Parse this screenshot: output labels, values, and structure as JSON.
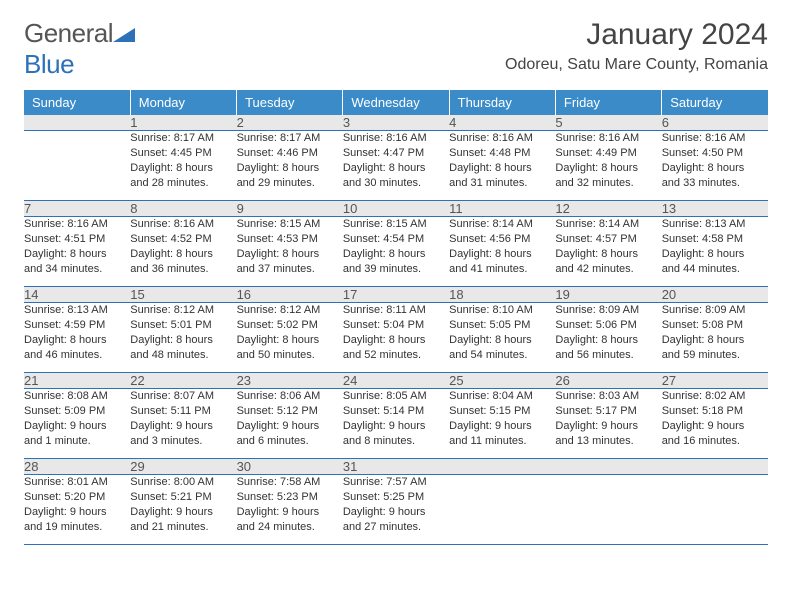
{
  "logo": {
    "text_a": "General",
    "text_b": "Blue",
    "shape_color": "#2d72b8"
  },
  "title": "January 2024",
  "location": "Odoreu, Satu Mare County, Romania",
  "colors": {
    "header_bg": "#3b8bc9",
    "header_fg": "#ffffff",
    "daynum_bg": "#e8e8e8",
    "border": "#2d72b8",
    "text": "#333333"
  },
  "weekdays": [
    "Sunday",
    "Monday",
    "Tuesday",
    "Wednesday",
    "Thursday",
    "Friday",
    "Saturday"
  ],
  "weeks": [
    {
      "nums": [
        "",
        "1",
        "2",
        "3",
        "4",
        "5",
        "6"
      ],
      "cells": [
        {
          "sunrise": "",
          "sunset": "",
          "daylight1": "",
          "daylight2": ""
        },
        {
          "sunrise": "Sunrise: 8:17 AM",
          "sunset": "Sunset: 4:45 PM",
          "daylight1": "Daylight: 8 hours",
          "daylight2": "and 28 minutes."
        },
        {
          "sunrise": "Sunrise: 8:17 AM",
          "sunset": "Sunset: 4:46 PM",
          "daylight1": "Daylight: 8 hours",
          "daylight2": "and 29 minutes."
        },
        {
          "sunrise": "Sunrise: 8:16 AM",
          "sunset": "Sunset: 4:47 PM",
          "daylight1": "Daylight: 8 hours",
          "daylight2": "and 30 minutes."
        },
        {
          "sunrise": "Sunrise: 8:16 AM",
          "sunset": "Sunset: 4:48 PM",
          "daylight1": "Daylight: 8 hours",
          "daylight2": "and 31 minutes."
        },
        {
          "sunrise": "Sunrise: 8:16 AM",
          "sunset": "Sunset: 4:49 PM",
          "daylight1": "Daylight: 8 hours",
          "daylight2": "and 32 minutes."
        },
        {
          "sunrise": "Sunrise: 8:16 AM",
          "sunset": "Sunset: 4:50 PM",
          "daylight1": "Daylight: 8 hours",
          "daylight2": "and 33 minutes."
        }
      ]
    },
    {
      "nums": [
        "7",
        "8",
        "9",
        "10",
        "11",
        "12",
        "13"
      ],
      "cells": [
        {
          "sunrise": "Sunrise: 8:16 AM",
          "sunset": "Sunset: 4:51 PM",
          "daylight1": "Daylight: 8 hours",
          "daylight2": "and 34 minutes."
        },
        {
          "sunrise": "Sunrise: 8:16 AM",
          "sunset": "Sunset: 4:52 PM",
          "daylight1": "Daylight: 8 hours",
          "daylight2": "and 36 minutes."
        },
        {
          "sunrise": "Sunrise: 8:15 AM",
          "sunset": "Sunset: 4:53 PM",
          "daylight1": "Daylight: 8 hours",
          "daylight2": "and 37 minutes."
        },
        {
          "sunrise": "Sunrise: 8:15 AM",
          "sunset": "Sunset: 4:54 PM",
          "daylight1": "Daylight: 8 hours",
          "daylight2": "and 39 minutes."
        },
        {
          "sunrise": "Sunrise: 8:14 AM",
          "sunset": "Sunset: 4:56 PM",
          "daylight1": "Daylight: 8 hours",
          "daylight2": "and 41 minutes."
        },
        {
          "sunrise": "Sunrise: 8:14 AM",
          "sunset": "Sunset: 4:57 PM",
          "daylight1": "Daylight: 8 hours",
          "daylight2": "and 42 minutes."
        },
        {
          "sunrise": "Sunrise: 8:13 AM",
          "sunset": "Sunset: 4:58 PM",
          "daylight1": "Daylight: 8 hours",
          "daylight2": "and 44 minutes."
        }
      ]
    },
    {
      "nums": [
        "14",
        "15",
        "16",
        "17",
        "18",
        "19",
        "20"
      ],
      "cells": [
        {
          "sunrise": "Sunrise: 8:13 AM",
          "sunset": "Sunset: 4:59 PM",
          "daylight1": "Daylight: 8 hours",
          "daylight2": "and 46 minutes."
        },
        {
          "sunrise": "Sunrise: 8:12 AM",
          "sunset": "Sunset: 5:01 PM",
          "daylight1": "Daylight: 8 hours",
          "daylight2": "and 48 minutes."
        },
        {
          "sunrise": "Sunrise: 8:12 AM",
          "sunset": "Sunset: 5:02 PM",
          "daylight1": "Daylight: 8 hours",
          "daylight2": "and 50 minutes."
        },
        {
          "sunrise": "Sunrise: 8:11 AM",
          "sunset": "Sunset: 5:04 PM",
          "daylight1": "Daylight: 8 hours",
          "daylight2": "and 52 minutes."
        },
        {
          "sunrise": "Sunrise: 8:10 AM",
          "sunset": "Sunset: 5:05 PM",
          "daylight1": "Daylight: 8 hours",
          "daylight2": "and 54 minutes."
        },
        {
          "sunrise": "Sunrise: 8:09 AM",
          "sunset": "Sunset: 5:06 PM",
          "daylight1": "Daylight: 8 hours",
          "daylight2": "and 56 minutes."
        },
        {
          "sunrise": "Sunrise: 8:09 AM",
          "sunset": "Sunset: 5:08 PM",
          "daylight1": "Daylight: 8 hours",
          "daylight2": "and 59 minutes."
        }
      ]
    },
    {
      "nums": [
        "21",
        "22",
        "23",
        "24",
        "25",
        "26",
        "27"
      ],
      "cells": [
        {
          "sunrise": "Sunrise: 8:08 AM",
          "sunset": "Sunset: 5:09 PM",
          "daylight1": "Daylight: 9 hours",
          "daylight2": "and 1 minute."
        },
        {
          "sunrise": "Sunrise: 8:07 AM",
          "sunset": "Sunset: 5:11 PM",
          "daylight1": "Daylight: 9 hours",
          "daylight2": "and 3 minutes."
        },
        {
          "sunrise": "Sunrise: 8:06 AM",
          "sunset": "Sunset: 5:12 PM",
          "daylight1": "Daylight: 9 hours",
          "daylight2": "and 6 minutes."
        },
        {
          "sunrise": "Sunrise: 8:05 AM",
          "sunset": "Sunset: 5:14 PM",
          "daylight1": "Daylight: 9 hours",
          "daylight2": "and 8 minutes."
        },
        {
          "sunrise": "Sunrise: 8:04 AM",
          "sunset": "Sunset: 5:15 PM",
          "daylight1": "Daylight: 9 hours",
          "daylight2": "and 11 minutes."
        },
        {
          "sunrise": "Sunrise: 8:03 AM",
          "sunset": "Sunset: 5:17 PM",
          "daylight1": "Daylight: 9 hours",
          "daylight2": "and 13 minutes."
        },
        {
          "sunrise": "Sunrise: 8:02 AM",
          "sunset": "Sunset: 5:18 PM",
          "daylight1": "Daylight: 9 hours",
          "daylight2": "and 16 minutes."
        }
      ]
    },
    {
      "nums": [
        "28",
        "29",
        "30",
        "31",
        "",
        "",
        ""
      ],
      "cells": [
        {
          "sunrise": "Sunrise: 8:01 AM",
          "sunset": "Sunset: 5:20 PM",
          "daylight1": "Daylight: 9 hours",
          "daylight2": "and 19 minutes."
        },
        {
          "sunrise": "Sunrise: 8:00 AM",
          "sunset": "Sunset: 5:21 PM",
          "daylight1": "Daylight: 9 hours",
          "daylight2": "and 21 minutes."
        },
        {
          "sunrise": "Sunrise: 7:58 AM",
          "sunset": "Sunset: 5:23 PM",
          "daylight1": "Daylight: 9 hours",
          "daylight2": "and 24 minutes."
        },
        {
          "sunrise": "Sunrise: 7:57 AM",
          "sunset": "Sunset: 5:25 PM",
          "daylight1": "Daylight: 9 hours",
          "daylight2": "and 27 minutes."
        },
        {
          "sunrise": "",
          "sunset": "",
          "daylight1": "",
          "daylight2": ""
        },
        {
          "sunrise": "",
          "sunset": "",
          "daylight1": "",
          "daylight2": ""
        },
        {
          "sunrise": "",
          "sunset": "",
          "daylight1": "",
          "daylight2": ""
        }
      ]
    }
  ]
}
